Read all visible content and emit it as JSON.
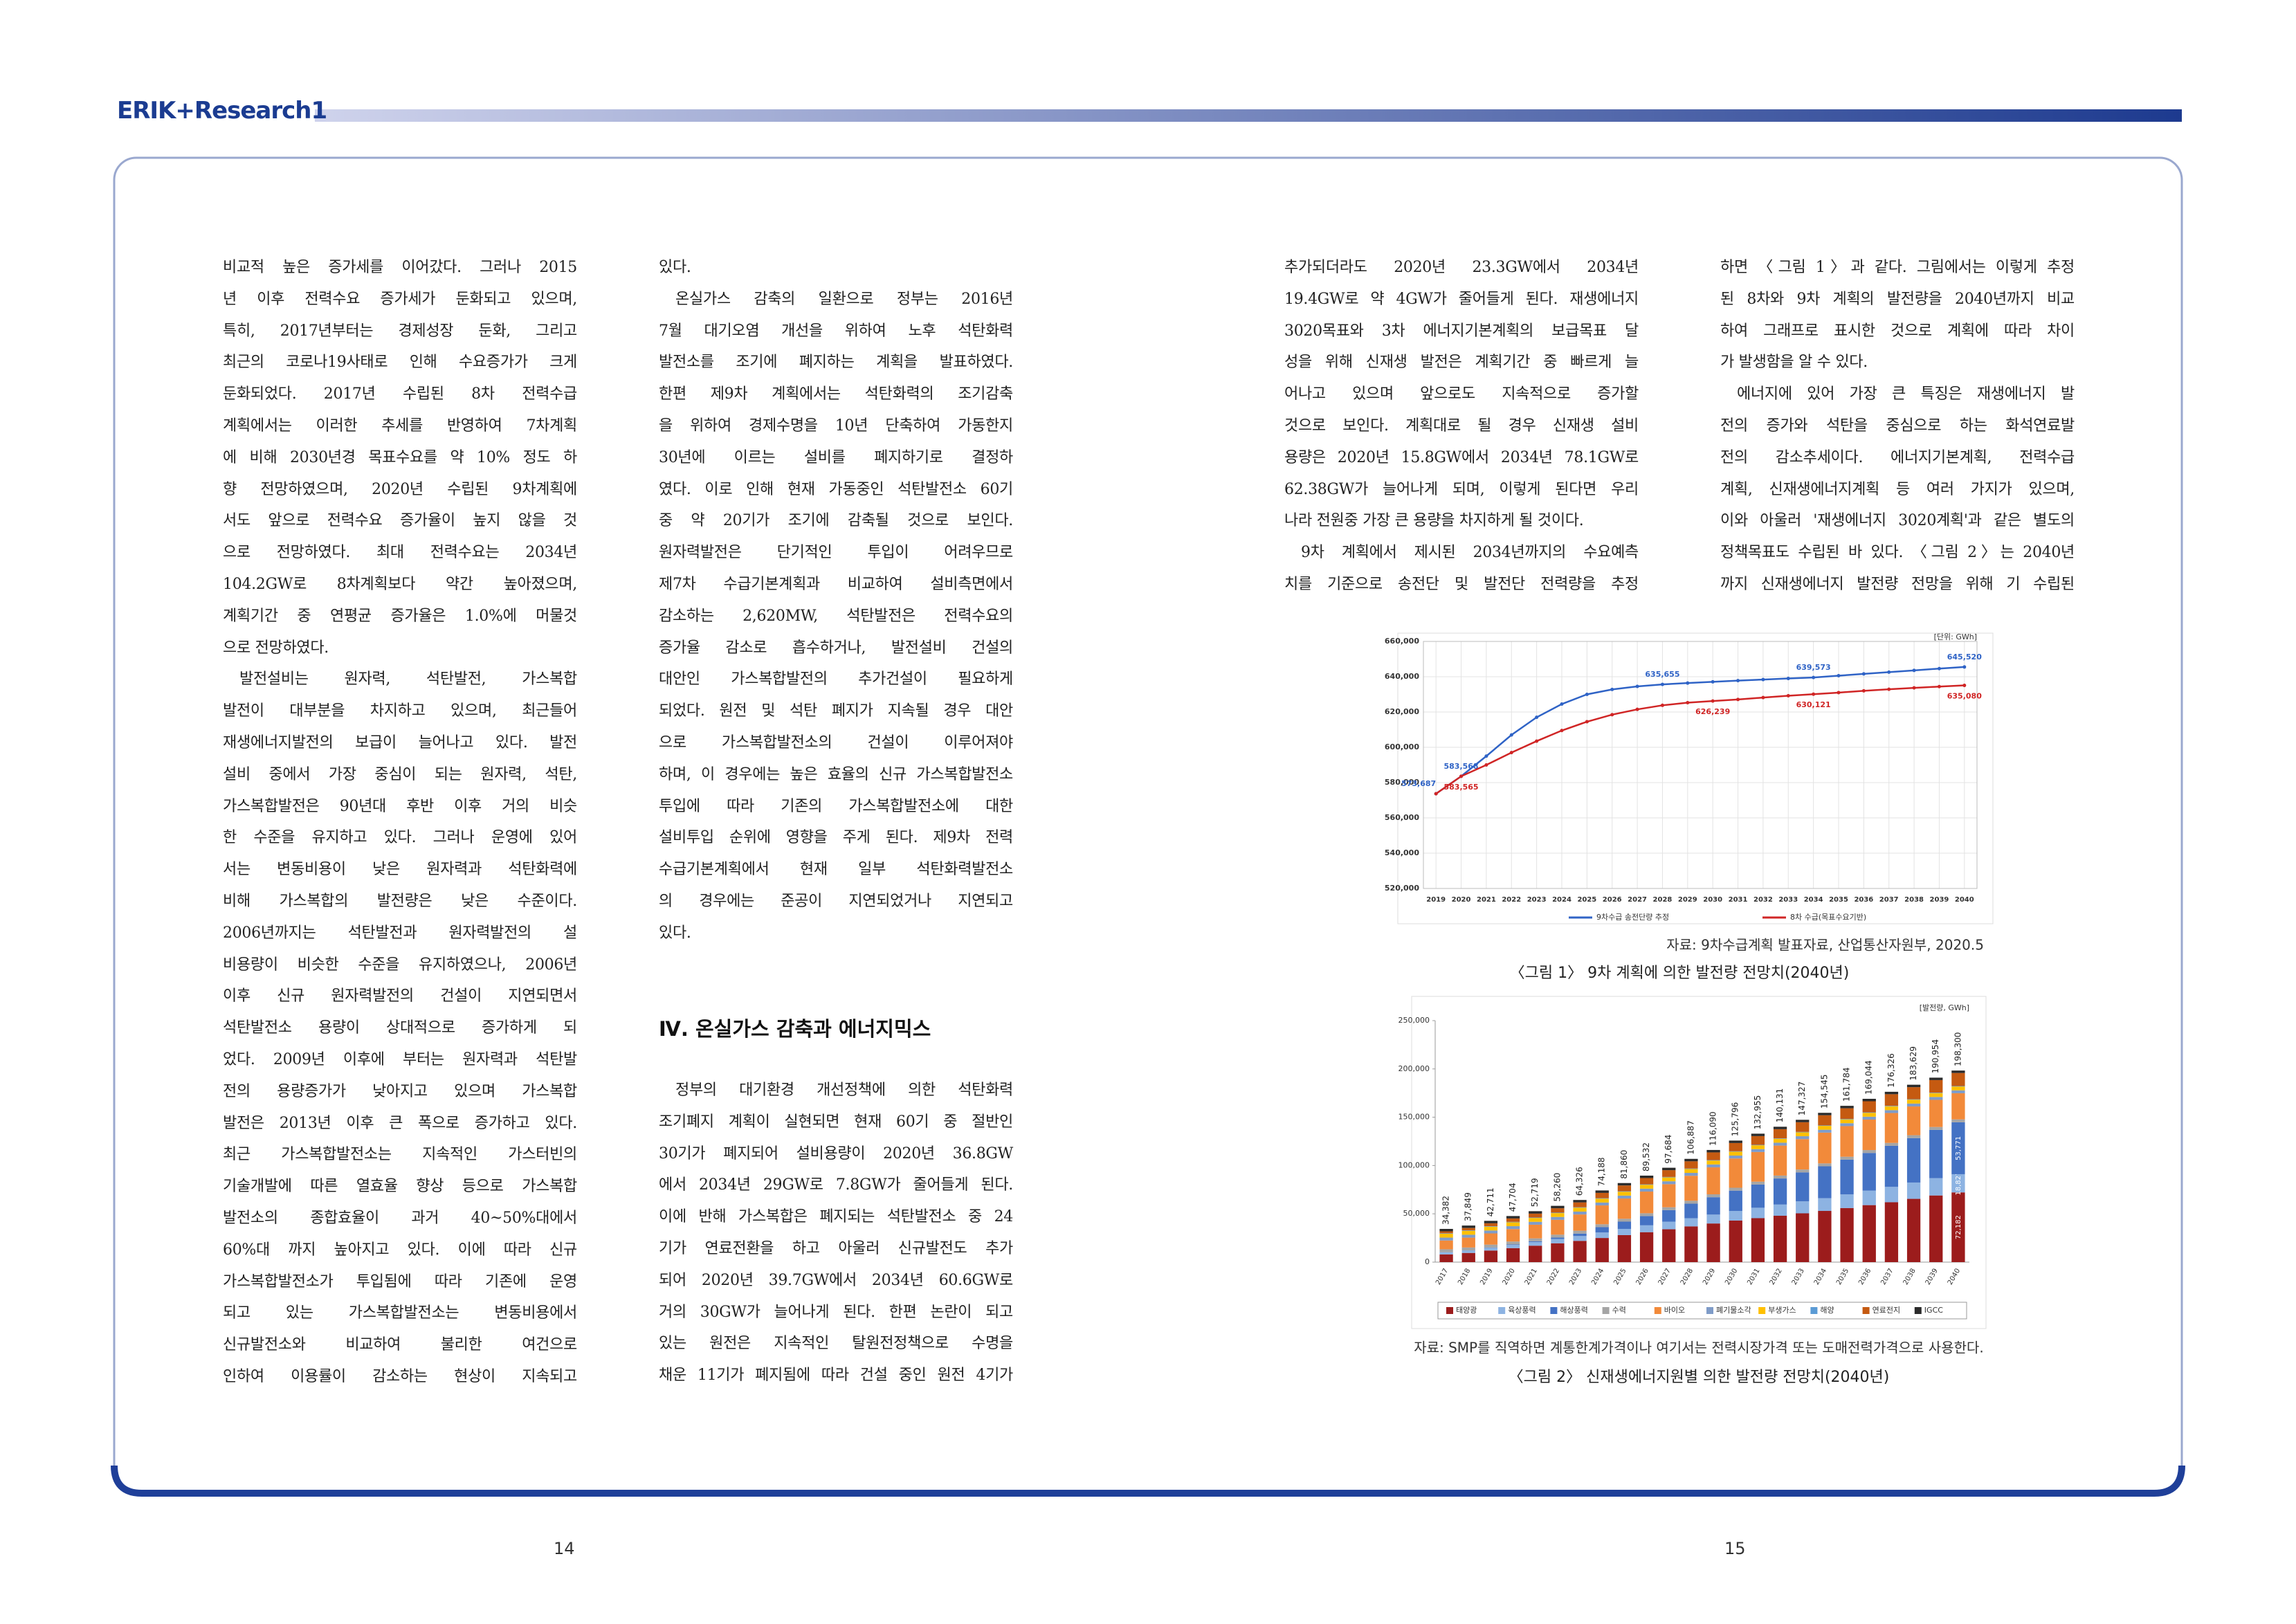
{
  "header": {
    "title": "ERIK+Research1"
  },
  "columns": [
    {
      "paragraphs": [
        {
          "lines": [
            "비교적 높은 증가세를 이어갔다. 그러나 2015",
            "년 이후 전력수요 증가세가 둔화되고 있으며,",
            "특히, 2017년부터는 경제성장 둔화, 그리고",
            "최근의 코로나19사태로 인해 수요증가가 크게",
            "둔화되었다. 2017년 수립된 8차 전력수급",
            "계획에서는 이러한 추세를 반영하여 7차계획",
            "에 비해 2030년경 목표수요를 약 10% 정도 하",
            "향 전망하였으며, 2020년 수립된 9차계획에",
            "서도 앞으로 전력수요 증가율이 높지 않을 것",
            "으로 전망하였다. 최대 전력수요는 2034년",
            "104.2GW로 8차계획보다 약간 높아졌으며,",
            "계획기간 중 연평균 증가율은 1.0%에 머물것",
            "으로 전망하였다."
          ]
        },
        {
          "lines": [
            "발전설비는 원자력, 석탄발전, 가스복합",
            "발전이 대부분을 차지하고 있으며, 최근들어",
            "재생에너지발전의 보급이 늘어나고 있다. 발전",
            "설비 중에서 가장 중심이 되는 원자력, 석탄,",
            "가스복합발전은 90년대 후반 이후 거의 비슷",
            "한 수준을 유지하고 있다. 그러나 운영에 있어",
            "서는 변동비용이 낮은 원자력과 석탄화력에",
            "비해 가스복합의 발전량은 낮은 수준이다.",
            "2006년까지는 석탄발전과 원자력발전의 설",
            "비용량이 비슷한 수준을 유지하였으나, 2006년",
            "이후 신규 원자력발전의 건설이 지연되면서",
            "석탄발전소 용량이 상대적으로 증가하게 되",
            "었다. 2009년 이후에 부터는 원자력과 석탄발",
            "전의 용량증가가 낮아지고 있으며 가스복합",
            "발전은 2013년 이후 큰 폭으로 증가하고 있다.",
            "최근 가스복합발전소는 지속적인 가스터빈의",
            "기술개발에 따른 열효율 향상 등으로 가스복합",
            "발전소의 종합효율이 과거 40~50%대에서",
            "60%대 까지 높아지고 있다. 이에 따라 신규",
            "가스복합발전소가 투입됨에 따라 기존에 운영",
            "되고 있는 가스복합발전소는 변동비용에서",
            "신규발전소와 비교하여 불리한 여건으로",
            "인하여 이용률이 감소하는 현상이 지속되고"
          ]
        }
      ]
    },
    {
      "paragraphs": [
        {
          "lines": [
            "있다."
          ]
        },
        {
          "lines": [
            "온실가스 감축의 일환으로 정부는 2016년",
            "7월 대기오염 개선을 위하여 노후 석탄화력",
            "발전소를 조기에 폐지하는 계획을 발표하였다.",
            "한편 제9차 계획에서는 석탄화력의 조기감축",
            "을 위하여 경제수명을 10년 단축하여 가동한지",
            "30년에 이르는 설비를 폐지하기로 결정하",
            "였다. 이로 인해 현재 가동중인 석탄발전소 60기",
            "중 약 20기가 조기에 감축될 것으로 보인다.",
            "원자력발전은 단기적인 투입이 어려우므로",
            "제7차 수급기본계획과 비교하여 설비측면에서",
            "감소하는 2,620MW, 석탄발전은 전력수요의",
            "증가율 감소로 흡수하거나, 발전설비 건설의",
            "대안인 가스복합발전의 추가건설이 필요하게",
            "되었다. 원전 및 석탄 폐지가 지속될 경우 대안",
            "으로 가스복합발전소의 건설이 이루어져야",
            "하며, 이 경우에는 높은 효율의 신규 가스복합발전소",
            "투입에 따라 기존의 가스복합발전소에 대한",
            "설비투입 순위에 영향을 주게 된다. 제9차 전력",
            "수급기본계획에서 현재 일부 석탄화력발전소",
            "의 경우에는 준공이 지연되었거나 지연되고",
            "있다."
          ]
        }
      ]
    },
    {
      "paragraphs": [
        {
          "lines": [
            "추가되더라도 2020년 23.3GW에서 2034년",
            "19.4GW로 약 4GW가 줄어들게 된다. 재생에너지",
            "3020목표와 3차 에너지기본계획의 보급목표 달",
            "성을 위해 신재생 발전은 계획기간 중 빠르게 늘",
            "어나고 있으며 앞으로도 지속적으로 증가할",
            "것으로 보인다. 계획대로 될 경우 신재생 설비",
            "용량은 2020년 15.8GW에서 2034년 78.1GW로",
            "62.38GW가 늘어나게 되며, 이렇게 된다면 우리",
            "나라 전원중 가장 큰 용량을 차지하게 될 것이다."
          ]
        },
        {
          "lines": [
            "9차 계획에서 제시된 2034년까지의 수요예측",
            "치를 기준으로 송전단 및 발전단 전력량을 추정"
          ]
        }
      ]
    },
    {
      "paragraphs": [
        {
          "lines": [
            "하면 〈그림 1〉과 같다. 그림에서는 이렇게 추정",
            "된 8차와 9차 계획의 발전량을 2040년까지 비교",
            "하여 그래프로 표시한 것으로 계획에 따라 차이",
            "가 발생함을 알 수 있다."
          ]
        },
        {
          "lines": [
            "에너지에 있어 가장 큰 특징은 재생에너지 발",
            "전의 증가와 석탄을 중심으로 하는 화석연료발",
            "전의 감소추세이다. 에너지기본계획, 전력수급",
            "계획, 신재생에너지계획 등 여러 가지가 있으며,",
            "이와 아울러 '재생에너지 3020계획'과 같은 별도의",
            "정책목표도 수립된 바 있다. 〈그림 2〉는 2040년",
            "까지 신재생에너지 발전량 전망을 위해 기 수립된"
          ]
        }
      ]
    }
  ],
  "section": {
    "heading": "Ⅳ. 온실가스 감축과 에너지믹스",
    "paragraphs": [
      {
        "lines": [
          "정부의 대기환경 개선정책에 의한 석탄화력",
          "조기폐지 계획이 실현되면 현재 60기 중 절반인",
          "30기가 폐지되어 설비용량이 2020년 36.8GW",
          "에서 2034년 29GW로 7.8GW가 줄어들게 된다.",
          "이에 반해 가스복합은 폐지되는 석탄발전소 중 24",
          "기가 연료전환을 하고 아울러 신규발전도 추가",
          "되어 2020년 39.7GW에서 2034년 60.6GW로",
          "거의 30GW가 늘어나게 된다. 한편 논란이 되고",
          "있는 원전은 지속적인 탈원전정책으로 수명을",
          "채운 11기가 폐지됨에 따라 건설 중인 원전 4기가"
        ]
      }
    ]
  },
  "chart_data": [
    {
      "type": "line",
      "unit_label": "[단위: GWh]",
      "categories": [
        "2019",
        "2020",
        "2021",
        "2022",
        "2023",
        "2024",
        "2025",
        "2026",
        "2027",
        "2028",
        "2029",
        "2030",
        "2031",
        "2032",
        "2033",
        "2034",
        "2035",
        "2036",
        "2037",
        "2038",
        "2039",
        "2040"
      ],
      "series": [
        {
          "name": "9차수급 송전단량 추정",
          "color": "#2f63c6",
          "values": [
            573687,
            583568,
            595000,
            607000,
            617000,
            624500,
            630000,
            632800,
            634500,
            635655,
            636400,
            637100,
            637800,
            638400,
            639000,
            639573,
            640600,
            641600,
            642600,
            643600,
            644600,
            645520
          ],
          "value_labels": [
            "573,687",
            "583,568",
            null,
            null,
            null,
            null,
            null,
            null,
            null,
            "635,655",
            null,
            null,
            null,
            null,
            null,
            "639,573",
            null,
            null,
            null,
            null,
            null,
            "645,520"
          ]
        },
        {
          "name": "8차 수급(목표수요기반)",
          "color": "#d02525",
          "values": [
            573687,
            583565,
            590000,
            597000,
            603500,
            609500,
            614500,
            618500,
            621500,
            623800,
            625300,
            626239,
            627100,
            628200,
            629200,
            630121,
            631000,
            632000,
            632900,
            633700,
            634400,
            635080
          ],
          "value_labels": [
            null,
            "583,565",
            null,
            null,
            null,
            null,
            null,
            null,
            null,
            null,
            null,
            "626,239",
            null,
            null,
            null,
            "630,121",
            null,
            null,
            null,
            null,
            null,
            "635,080"
          ]
        }
      ],
      "ylim": [
        520000,
        660000
      ],
      "yticks": [
        {
          "value": 520000,
          "label": "520,000"
        },
        {
          "value": 540000,
          "label": "540,000"
        },
        {
          "value": 560000,
          "label": "560,000"
        },
        {
          "value": 580000,
          "label": "580,000"
        },
        {
          "value": 600000,
          "label": "600,000"
        },
        {
          "value": 620000,
          "label": "620,000"
        },
        {
          "value": 640000,
          "label": "640,000"
        },
        {
          "value": 660000,
          "label": "660,000"
        }
      ],
      "grid": true,
      "legend": "bottom",
      "source": "자료: 9차수급계획 발표자료, 산업통산자원부, 2020.5",
      "caption": "〈그림 1〉 9차 계획에 의한 발전량 전망치(2040년)"
    },
    {
      "type": "stacked_bar",
      "unit_label": "[발전량, GWh]",
      "categories": [
        "2017",
        "2018",
        "2019",
        "2020",
        "2021",
        "2022",
        "2023",
        "2024",
        "2025",
        "2026",
        "2027",
        "2028",
        "2029",
        "2030",
        "2031",
        "2032",
        "2033",
        "2034",
        "2035",
        "2036",
        "2037",
        "2038",
        "2039",
        "2040"
      ],
      "series": [
        {
          "name": "태양광",
          "color": "#9c1c1c",
          "values": [
            8000,
            9500,
            12000,
            14500,
            17000,
            19500,
            22000,
            25000,
            28000,
            31000,
            34000,
            37000,
            40000,
            43000,
            45500,
            48000,
            50500,
            53000,
            56000,
            59000,
            62000,
            65500,
            69000,
            72182
          ],
          "value_labels": [
            null,
            null,
            null,
            null,
            null,
            null,
            null,
            null,
            null,
            null,
            null,
            null,
            null,
            null,
            null,
            null,
            null,
            null,
            null,
            null,
            null,
            null,
            null,
            "72,182"
          ]
        },
        {
          "name": "육상풍력",
          "color": "#8db3e2",
          "values": [
            2200,
            2500,
            2800,
            3300,
            3800,
            4400,
            5000,
            5700,
            6400,
            7100,
            7800,
            8500,
            9200,
            10000,
            10800,
            11600,
            12400,
            13200,
            14100,
            15000,
            15900,
            16900,
            17900,
            18827
          ],
          "value_labels": [
            null,
            null,
            null,
            null,
            null,
            null,
            null,
            null,
            null,
            null,
            null,
            null,
            null,
            null,
            null,
            null,
            null,
            null,
            null,
            null,
            null,
            null,
            null,
            "18,827"
          ]
        },
        {
          "name": "해상풍력",
          "color": "#4472c4",
          "values": [
            100,
            150,
            300,
            500,
            800,
            1500,
            2500,
            5500,
            7500,
            9500,
            12000,
            15000,
            18000,
            21000,
            24000,
            27000,
            30000,
            33000,
            36000,
            39000,
            42500,
            46000,
            50000,
            53771
          ],
          "value_labels": [
            null,
            null,
            null,
            null,
            null,
            null,
            null,
            null,
            null,
            null,
            null,
            null,
            null,
            null,
            null,
            null,
            null,
            null,
            null,
            null,
            null,
            null,
            null,
            "53,771"
          ]
        },
        {
          "name": "수력",
          "color": "#a5a5a5",
          "values": [
            3000,
            3000,
            3000,
            3000,
            3000,
            3000,
            3000,
            3000,
            3000,
            3000,
            3000,
            3000,
            3000,
            3000,
            3000,
            3000,
            3000,
            3000,
            3000,
            3000,
            3000,
            3000,
            3000,
            3000
          ]
        },
        {
          "name": "바이오",
          "color": "#f28a3a",
          "values": [
            9092,
            10209,
            11621,
            12914,
            14129,
            15370,
            16836,
            19498,
            20970,
            22442,
            23894,
            25897,
            27900,
            30306,
            30665,
            31041,
            31437,
            31855,
            31694,
            31554,
            30936,
            29739,
            28064,
            27030
          ]
        },
        {
          "name": "폐기물소각",
          "color": "#7f9cc8",
          "values": [
            3000,
            3000,
            3000,
            3000,
            3000,
            3000,
            3000,
            3000,
            3000,
            3000,
            3000,
            3000,
            3000,
            3000,
            3000,
            3000,
            3000,
            3000,
            3000,
            3000,
            3000,
            3000,
            3000,
            3000
          ]
        },
        {
          "name": "부생가스",
          "color": "#ffc000",
          "values": [
            4000,
            4000,
            4000,
            4000,
            4000,
            4000,
            4000,
            4000,
            4000,
            4000,
            4000,
            4000,
            4000,
            4000,
            4000,
            4000,
            4000,
            4000,
            4000,
            4000,
            4000,
            4000,
            4000,
            4000
          ]
        },
        {
          "name": "해양",
          "color": "#5b9bd5",
          "values": [
            490,
            490,
            490,
            490,
            490,
            490,
            490,
            490,
            490,
            490,
            490,
            490,
            490,
            490,
            490,
            490,
            490,
            490,
            490,
            490,
            490,
            490,
            490,
            490
          ]
        },
        {
          "name": "연료전지",
          "color": "#c55a11",
          "values": [
            2000,
            2500,
            3000,
            3500,
            4000,
            4500,
            5000,
            5500,
            6000,
            6500,
            7000,
            7500,
            8000,
            8500,
            9000,
            9500,
            10000,
            10500,
            11000,
            11500,
            12000,
            12500,
            13000,
            13500
          ]
        },
        {
          "name": "IGCC",
          "color": "#2b2b2b",
          "values": [
            2500,
            2500,
            2500,
            2500,
            2500,
            2500,
            2500,
            2500,
            2500,
            2500,
            2500,
            2500,
            2500,
            2500,
            2500,
            2500,
            2500,
            2500,
            2500,
            2500,
            2500,
            2500,
            2500,
            2500
          ]
        }
      ],
      "totals": {
        "values": [
          34382,
          37849,
          42711,
          47704,
          52719,
          58260,
          64326,
          74188,
          81860,
          89532,
          97684,
          106887,
          116090,
          125796,
          132955,
          140131,
          147327,
          154545,
          161784,
          169044,
          176326,
          183629,
          190954,
          198300
        ],
        "value_labels": [
          "34,382",
          "37,849",
          "42,711",
          "47,704",
          "52,719",
          "58,260",
          "64,326",
          "74,188",
          "81,860",
          "89,532",
          "97,684",
          "106,887",
          "116,090",
          "125,796",
          "132,955",
          "140,131",
          "147,327",
          "154,545",
          "161,784",
          "169,044",
          "176,326",
          "183,629",
          "190,954",
          "198,300"
        ]
      },
      "ylim": [
        0,
        250000
      ],
      "yticks": [
        0,
        {
          "value": 50000,
          "label": "50,000"
        },
        {
          "value": 100000,
          "label": "100,000"
        },
        {
          "value": 150000,
          "label": "150,000"
        },
        {
          "value": 200000,
          "label": "200,000"
        },
        {
          "value": 250000,
          "label": "250,000"
        }
      ],
      "grid": false,
      "legend": "bottom",
      "source": "자료: SMP를 직역하면 계통한계가격이나 여기서는 전력시장가격 또는 도매전력가격으로 사용한다.",
      "caption": "〈그림 2〉 신재생에너지원별 의한 발전량 전망치(2040년)"
    }
  ],
  "page_numbers": [
    "14",
    "15"
  ]
}
